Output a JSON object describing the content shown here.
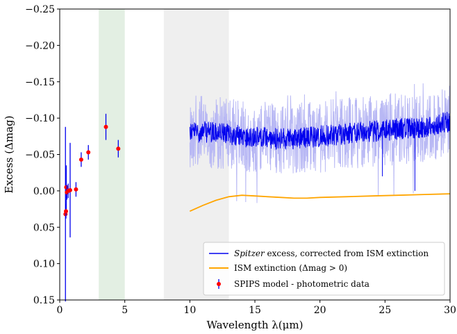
{
  "chart_data": {
    "type": "line",
    "xlabel": "Wavelength λ(μm)",
    "ylabel": "Excess (Δmag)",
    "xlim": [
      0,
      30
    ],
    "ylim": [
      0.15,
      -0.25
    ],
    "y_inverted": true,
    "grid": false,
    "legend_placement": "lower-right",
    "x_ticks": [
      "0",
      "5",
      "10",
      "15",
      "20",
      "25",
      "30"
    ],
    "y_ticks": [
      "−0.25",
      "−0.20",
      "−0.15",
      "−0.10",
      "−0.05",
      "0.00",
      "0.05",
      "0.10",
      "0.15"
    ],
    "shaded_bands": [
      {
        "x_range": [
          3.0,
          5.0
        ],
        "color": "#e3efe3"
      },
      {
        "x_range": [
          8.0,
          13.0
        ],
        "color": "#efefef"
      }
    ],
    "series": [
      {
        "name": "Spitzer excess, corrected from ISM extinction",
        "name_italic_part": "Spitzer",
        "name_rest": " excess, corrected from ISM extinction",
        "kind": "spectrum",
        "color": "#0000ee",
        "band_color": "#b8b8f4",
        "x_range": [
          10.0,
          30.0
        ],
        "mean_trend": [
          {
            "x": 10.0,
            "y": -0.082
          },
          {
            "x": 12.0,
            "y": -0.08
          },
          {
            "x": 14.0,
            "y": -0.075
          },
          {
            "x": 16.0,
            "y": -0.072
          },
          {
            "x": 18.0,
            "y": -0.071
          },
          {
            "x": 20.0,
            "y": -0.075
          },
          {
            "x": 22.0,
            "y": -0.078
          },
          {
            "x": 24.0,
            "y": -0.082
          },
          {
            "x": 26.0,
            "y": -0.085
          },
          {
            "x": 28.0,
            "y": -0.088
          },
          {
            "x": 30.0,
            "y": -0.095
          }
        ],
        "scatter_amplitude": 0.015,
        "band_amplitude": 0.05
      },
      {
        "name": "ISM extinction (Δmag > 0)",
        "kind": "line",
        "color": "#ffa500",
        "points": [
          {
            "x": 10.0,
            "y": 0.028
          },
          {
            "x": 11.0,
            "y": 0.02
          },
          {
            "x": 12.0,
            "y": 0.013
          },
          {
            "x": 13.0,
            "y": 0.008
          },
          {
            "x": 14.0,
            "y": 0.006
          },
          {
            "x": 15.0,
            "y": 0.007
          },
          {
            "x": 16.0,
            "y": 0.008
          },
          {
            "x": 17.0,
            "y": 0.009
          },
          {
            "x": 18.0,
            "y": 0.01
          },
          {
            "x": 19.0,
            "y": 0.01
          },
          {
            "x": 20.0,
            "y": 0.009
          },
          {
            "x": 22.0,
            "y": 0.008
          },
          {
            "x": 24.0,
            "y": 0.007
          },
          {
            "x": 26.0,
            "y": 0.006
          },
          {
            "x": 28.0,
            "y": 0.005
          },
          {
            "x": 30.0,
            "y": 0.004
          }
        ]
      },
      {
        "name": "SPIPS model - photometric data",
        "kind": "errorbar",
        "marker_color": "#ff0000",
        "errorbar_color": "#0000ee",
        "points": [
          {
            "x": 0.44,
            "y": 0.032,
            "yerr": 0.12
          },
          {
            "x": 0.48,
            "y": 0.028,
            "yerr": 0.01
          },
          {
            "x": 0.5,
            "y": -0.005,
            "yerr": 0.03
          },
          {
            "x": 0.55,
            "y": 0.002,
            "yerr": 0.01
          },
          {
            "x": 0.65,
            "y": 0.0,
            "yerr": 0.01
          },
          {
            "x": 0.8,
            "y": -0.001,
            "yerr": 0.065
          },
          {
            "x": 1.25,
            "y": -0.002,
            "yerr": 0.01
          },
          {
            "x": 1.65,
            "y": -0.043,
            "yerr": 0.01
          },
          {
            "x": 2.2,
            "y": -0.053,
            "yerr": 0.01
          },
          {
            "x": 3.55,
            "y": -0.088,
            "yerr": 0.018
          },
          {
            "x": 4.5,
            "y": -0.058,
            "yerr": 0.012
          }
        ]
      }
    ]
  }
}
